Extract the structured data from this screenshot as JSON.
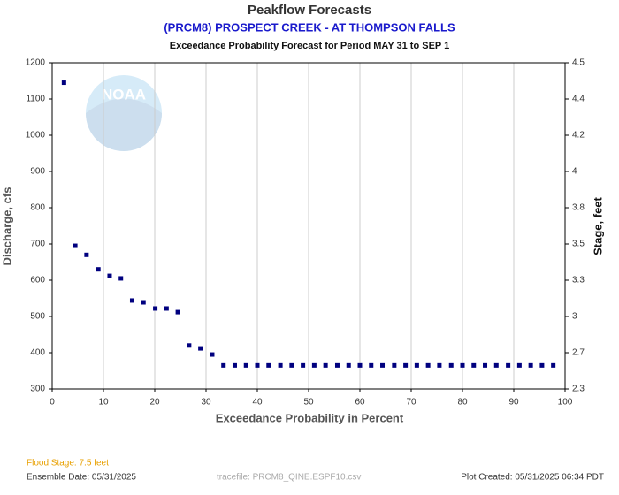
{
  "chart_data": {
    "type": "scatter",
    "title": "Peakflow Forecasts",
    "subtitle": "(PRCM8) PROSPECT CREEK - AT THOMPSON FALLS",
    "period": "Exceedance Probability Forecast for Period MAY 31 to SEP 1",
    "xlabel": "Exceedance Probability in Percent",
    "ylabel": "Discharge, cfs",
    "y2label": "Stage, feet",
    "logo_text": "NOAA",
    "color": "#00007f",
    "grid": true,
    "xlim": [
      0,
      100
    ],
    "xticks": [
      0,
      10,
      20,
      30,
      40,
      50,
      60,
      70,
      80,
      90,
      100
    ],
    "ylim": [
      300,
      1200
    ],
    "yticks": [
      300,
      400,
      500,
      600,
      700,
      800,
      900,
      1000,
      1100,
      1200
    ],
    "y2lim": [
      2.3,
      4.5
    ],
    "y2ticks": [
      2.3,
      2.7,
      3.0,
      3.3,
      3.5,
      3.8,
      4.0,
      4.2,
      4.4,
      4.5
    ],
    "x": [
      2.3,
      4.5,
      6.7,
      9.0,
      11.2,
      13.4,
      15.6,
      17.8,
      20.1,
      22.3,
      24.5,
      26.7,
      28.9,
      31.2,
      33.4,
      35.6,
      37.8,
      40.0,
      42.2,
      44.5,
      46.7,
      48.9,
      51.1,
      53.3,
      55.6,
      57.8,
      60.0,
      62.2,
      64.4,
      66.7,
      68.9,
      71.1,
      73.3,
      75.5,
      77.8,
      80.0,
      82.2,
      84.4,
      86.6,
      88.9,
      91.1,
      93.3,
      95.5,
      97.7
    ],
    "values": [
      1145,
      695,
      670,
      630,
      612,
      605,
      544,
      539,
      522,
      522,
      512,
      420,
      412,
      395,
      365,
      365,
      365,
      365,
      365,
      365,
      365,
      365,
      365,
      365,
      365,
      365,
      365,
      365,
      365,
      365,
      365,
      365,
      365,
      365,
      365,
      365,
      365,
      365,
      365,
      365,
      365,
      365,
      365,
      365
    ],
    "footer": {
      "flood_stage": "Flood Stage: 7.5 feet",
      "ensemble_date": "Ensemble Date: 05/31/2025",
      "tracefile": "tracefile: PRCM8_QINE.ESPF10.csv",
      "plot_created": "Plot Created: 05/31/2025 06:34 PDT"
    }
  }
}
